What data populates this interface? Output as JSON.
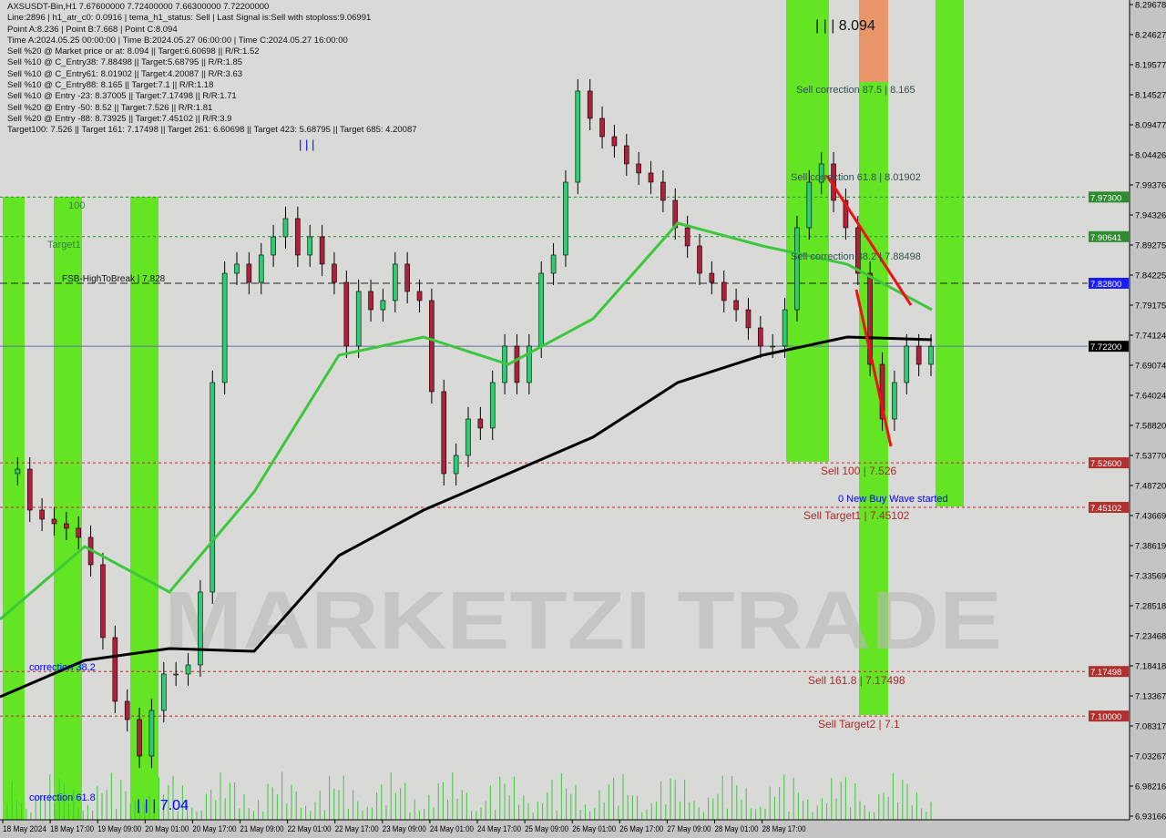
{
  "info": {
    "lines": [
      "AXSUSDT-Bin,H1  7.67600000 7.72400000 7.66300000 7.72200000",
      "Line:2896 | h1_atr_c0: 0.0916 | tema_h1_status: Sell | Last Signal is:Sell with stoploss:9.06991",
      "Point A:8.236 | Point B:7.668 | Point C:8.094",
      "Time A:2024.05.25 00:00:00 | Time B:2024.05.27 06:00:00 | Time C:2024.05.27 16:00:00",
      "Sell %20 @ Market price or at: 8.094 || Target:6.60698 || R/R:1.52",
      "Sell %10 @ C_Entry38: 7.88498 || Target:5.68795 || R/R:1.85",
      "Sell %10 @ C_Entry61: 8.01902 || Target:4.20087 || R/R:3.63",
      "Sell %10 @ C_Entry88: 8.165 || Target:7.1 || R/R:1.18",
      "Sell %10 @ Entry -23: 8.37005 || Target:7.17498 || R/R:1.71",
      "Sell %20 @ Entry -50: 8.52 || Target:7.526 || R/R:1.81",
      "Sell %20 @ Entry -88: 8.73925 || Target:7.45102 || R/R:3.9",
      "Target100: 7.526 || Target 161: 7.17498 || Target 261: 6.60698 || Target 423: 5.68795 || Target 685: 4.20087"
    ]
  },
  "colors": {
    "background": "#d9d9d7",
    "zone_green": "#5de61a",
    "zone_orange": "#e8956a",
    "bull": "#2ecc71",
    "bear": "#b0203a",
    "ma_black": "#000000",
    "ma_green": "#3cc83c",
    "level_green": "#2e8b2e",
    "level_red": "#b22222",
    "level_blue": "#1a1aff",
    "text_red": "#a52a2a",
    "text_blue": "#0000ff"
  },
  "chart_data": {
    "type": "candlestick",
    "title": "AXSUSDT-Bin,H1",
    "ylim": [
      6.93166,
      8.29678
    ],
    "y_ticks": [
      "8.29678",
      "8.24627",
      "8.19577",
      "8.14527",
      "8.09477",
      "8.04426",
      "7.99376",
      "7.94326",
      "7.89275",
      "7.84225",
      "7.79175",
      "7.74124",
      "7.69074",
      "7.64024",
      "7.58820",
      "7.53770",
      "7.48720",
      "7.43669",
      "7.38619",
      "7.33569",
      "7.28518",
      "7.23468",
      "7.18418",
      "7.13367",
      "7.08317",
      "7.03267",
      "6.98216",
      "6.93166"
    ],
    "x_ticks": [
      "18 May 2024",
      "18 May 17:00",
      "19 May 09:00",
      "20 May 01:00",
      "20 May 17:00",
      "21 May 09:00",
      "22 May 01:00",
      "22 May 17:00",
      "23 May 09:00",
      "24 May 01:00",
      "24 May 17:00",
      "25 May 09:00",
      "26 May 01:00",
      "26 May 17:00",
      "27 May 09:00",
      "28 May 01:00",
      "28 May 17:00"
    ],
    "closes": [
      7.5078,
      7.5154,
      7.4465,
      7.4312,
      7.4235,
      7.4159,
      7.4006,
      7.3546,
      7.232,
      7.1248,
      7.0941,
      7.0328,
      7.1094,
      7.1707,
      7.1707,
      7.186,
      7.3086,
      7.661,
      7.8448,
      7.8602,
      7.8295,
      7.8755,
      7.9061,
      7.9368,
      7.8755,
      7.9061,
      7.8602,
      7.8295,
      7.7223,
      7.8142,
      7.7835,
      7.7989,
      7.8602,
      7.8142,
      7.7989,
      7.6457,
      7.5078,
      7.5384,
      7.5997,
      7.5844,
      7.661,
      7.7223,
      7.661,
      7.7223,
      7.8448,
      7.8755,
      7.998,
      8.1513,
      8.1053,
      8.0746,
      8.0593,
      8.0287,
      8.0134,
      7.998,
      7.9674,
      7.9214,
      7.8908,
      7.8448,
      7.8295,
      7.7989,
      7.7835,
      7.7529,
      7.7223,
      7.7223,
      7.7835,
      7.9214,
      7.998,
      8.0287,
      7.9674,
      7.9214,
      7.8448,
      7.6916,
      7.5997,
      7.661,
      7.7223,
      7.6916,
      7.722
    ],
    "ma_black": [
      7.1324,
      7.1937,
      7.2136,
      7.209,
      7.3699,
      7.4465,
      7.5078,
      7.5691,
      7.661,
      7.7069,
      7.7376,
      7.733
    ],
    "ma_green": [
      7.2626,
      7.3852,
      7.3086,
      7.4771,
      7.7069,
      7.7376,
      7.6916,
      7.7682,
      7.9291,
      7.8908,
      7.8602,
      7.7835
    ],
    "levels": [
      {
        "price": 7.973,
        "label": "7.97300",
        "kind": "green"
      },
      {
        "price": 7.90641,
        "label": "7.90641",
        "kind": "green"
      },
      {
        "price": 7.828,
        "label": "7.82800",
        "kind": "blue"
      },
      {
        "price": 7.722,
        "label": "7.72200",
        "kind": "black"
      },
      {
        "price": 7.526,
        "label": "7.52600",
        "kind": "red"
      },
      {
        "price": 7.45102,
        "label": "7.45102",
        "kind": "red"
      },
      {
        "price": 7.17498,
        "label": "7.17498",
        "kind": "red"
      },
      {
        "price": 7.1,
        "label": "7.10000",
        "kind": "red"
      }
    ],
    "annotations": {
      "a100": "100",
      "target1": "Target1",
      "fsb": "FSB-HighToBreak | 7.828",
      "corr382": "correction 38.2",
      "corr618": "correction 61.8",
      "low_mark": "| | | 7.04",
      "high_mark": "| | | 8.094",
      "bars_mark": "| | |",
      "sell875": "Sell correction 87.5 | 8.165",
      "sell618": "Sell correction 61.8 | 8.01902",
      "sell382": "Sell correction 38.2 | 7.88498",
      "sell100": "Sell 100 | 7.526",
      "new_wave": "0 New Buy Wave started",
      "sell_t1": "Sell Target1 | 7.45102",
      "sell1618": "Sell 161.8 | 7.17498",
      "sell_t2": "Sell Target2 | 7.1"
    },
    "watermark": "MARKETZI TRADE"
  }
}
